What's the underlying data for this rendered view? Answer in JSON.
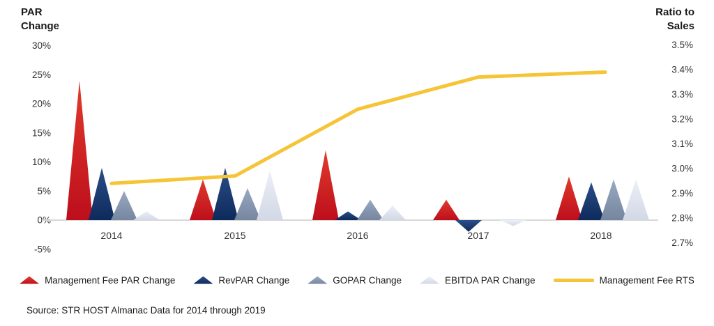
{
  "page": {
    "source_note": "Source: STR HOST Almanac Data for 2014 through 2019"
  },
  "chart_data": {
    "type": "combo-triangle-line",
    "categories": [
      "2014",
      "2015",
      "2016",
      "2017",
      "2018"
    ],
    "left_axis": {
      "title": "PAR\nChange",
      "ticks": [
        "30%",
        "25%",
        "20%",
        "15%",
        "10%",
        "5%",
        "0%",
        "-5%"
      ],
      "tick_values": [
        30,
        25,
        20,
        15,
        10,
        5,
        0,
        -5
      ],
      "ylim": [
        -5,
        30
      ],
      "unit": "%"
    },
    "right_axis": {
      "title": "Ratio to\nSales",
      "ticks": [
        "3.5%",
        "3.4%",
        "3.3%",
        "3.2%",
        "3.1%",
        "3.0%",
        "2.9%",
        "2.8%",
        "2.7%"
      ],
      "tick_values": [
        3.5,
        3.4,
        3.3,
        3.2,
        3.1,
        3.0,
        2.9,
        2.8,
        2.7
      ],
      "ylim": [
        2.7,
        3.5
      ],
      "unit": "%"
    },
    "grid": "off",
    "legend_position": "bottom",
    "series": [
      {
        "name": "Management Fee PAR Change",
        "type": "triangle",
        "axis": "left",
        "color_top": "#e13b2c",
        "color_bottom": "#bd0e1c",
        "values": [
          24,
          7,
          12,
          3.5,
          7.5
        ]
      },
      {
        "name": "RevPAR Change",
        "type": "triangle",
        "axis": "left",
        "color_top": "#2b4f88",
        "color_bottom": "#0e2a5c",
        "values": [
          9,
          9,
          1.5,
          -2,
          6.5
        ]
      },
      {
        "name": "GOPAR Change",
        "type": "triangle",
        "axis": "left",
        "color_top": "#9aa8c2",
        "color_bottom": "#76869f",
        "values": [
          5,
          5.5,
          3.5,
          0,
          7
        ]
      },
      {
        "name": "EBITDA PAR Change",
        "type": "triangle",
        "axis": "left",
        "color_top": "#eceff6",
        "color_bottom": "#d2d8e6",
        "values": [
          1.5,
          8.5,
          2.5,
          -1,
          7
        ]
      },
      {
        "name": "Management Fee RTS",
        "type": "line",
        "axis": "right",
        "color": "#f5c437",
        "values": [
          2.94,
          2.97,
          3.24,
          3.37,
          3.39
        ]
      }
    ]
  }
}
